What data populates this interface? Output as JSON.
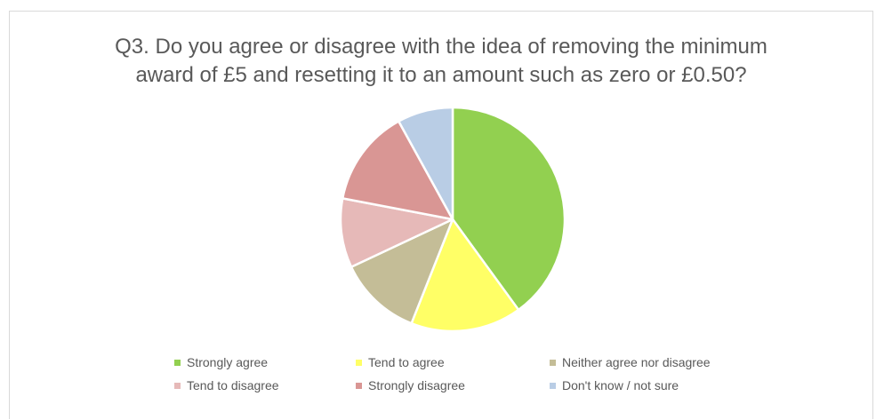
{
  "chart_data": {
    "type": "pie",
    "title_lines": [
      "Q3. Do you agree or disagree with the idea of removing the minimum",
      "award of £5 and resetting it to an amount such as zero or £0.50?"
    ],
    "legend_position": "bottom",
    "slices": [
      {
        "label": "Strongly agree",
        "value": 40,
        "color": "#92d050"
      },
      {
        "label": "Tend to agree",
        "value": 16,
        "color": "#ffff66"
      },
      {
        "label": "Neither agree nor disagree",
        "value": 12,
        "color": "#c4bd97"
      },
      {
        "label": "Tend to disagree",
        "value": 10,
        "color": "#e6b9b8"
      },
      {
        "label": "Strongly disagree",
        "value": 14,
        "color": "#d99694"
      },
      {
        "label": "Don't know / not sure",
        "value": 8,
        "color": "#b9cde5"
      }
    ]
  }
}
